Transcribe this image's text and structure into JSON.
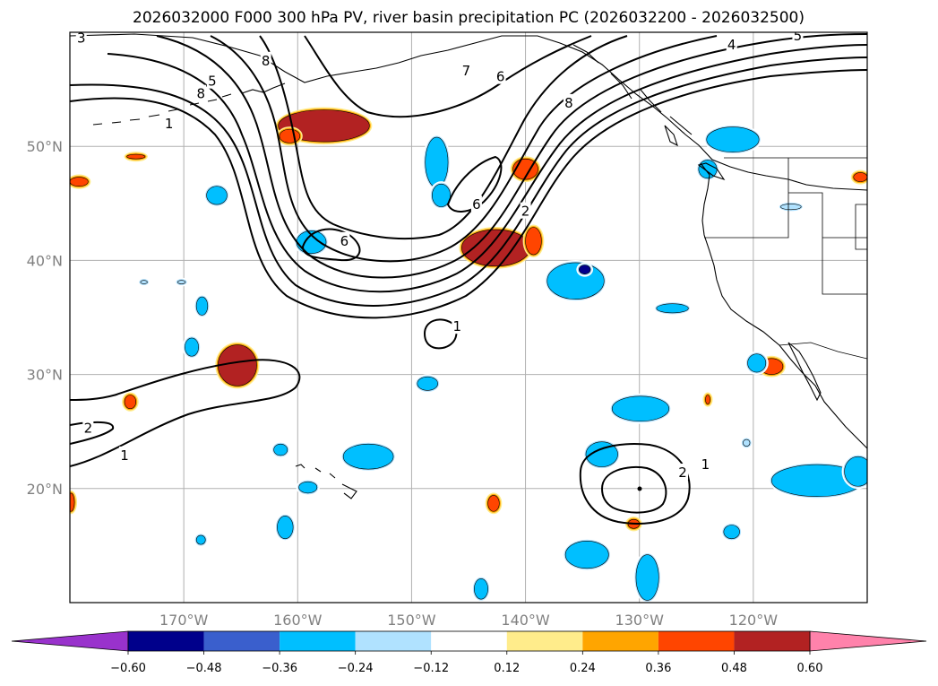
{
  "title": "2026032000 F000 300 hPa PV, river basin precipitation PC (2026032200 - 2026032500)",
  "map": {
    "lon_min": -180,
    "lon_max": -110,
    "lat_min": 10,
    "lat_max": 60,
    "lon_ticks": [
      {
        "lon": -170,
        "label": "170°W"
      },
      {
        "lon": -160,
        "label": "160°W"
      },
      {
        "lon": -150,
        "label": "150°W"
      },
      {
        "lon": -140,
        "label": "140°W"
      },
      {
        "lon": -130,
        "label": "130°W"
      },
      {
        "lon": -120,
        "label": "120°W"
      }
    ],
    "lat_ticks": [
      {
        "lat": 50,
        "label": "50°N"
      },
      {
        "lat": 40,
        "label": "40°N"
      },
      {
        "lat": 30,
        "label": "30°N"
      },
      {
        "lat": 20,
        "label": "20°N"
      }
    ],
    "grid": true
  },
  "colorbar": {
    "levels": [
      -0.6,
      -0.48,
      -0.36,
      -0.24,
      -0.12,
      0.12,
      0.24,
      0.36,
      0.48,
      0.6
    ],
    "tick_labels": [
      "−0.60",
      "−0.48",
      "−0.36",
      "−0.24",
      "−0.12",
      "0.12",
      "0.24",
      "0.36",
      "0.48",
      "0.60"
    ],
    "colors": [
      "#9932cc",
      "#00008b",
      "#3a5fcd",
      "#00bfff",
      "#b0e2ff",
      "#ffffff",
      "#ffec8b",
      "#ffa500",
      "#ff4500",
      "#b22222",
      "#ff82ab"
    ],
    "extend": "both"
  },
  "contour_labels": [
    {
      "text": "3",
      "lon": -179.0,
      "lat": 59.5
    },
    {
      "text": "8",
      "lon": -162.8,
      "lat": 57.5
    },
    {
      "text": "5",
      "lon": -167.5,
      "lat": 55.7
    },
    {
      "text": "8",
      "lon": -168.5,
      "lat": 54.6
    },
    {
      "text": "1",
      "lon": -171.3,
      "lat": 52.0
    },
    {
      "text": "7",
      "lon": -145.2,
      "lat": 56.6
    },
    {
      "text": "6",
      "lon": -142.2,
      "lat": 56.1
    },
    {
      "text": "8",
      "lon": -136.2,
      "lat": 53.8
    },
    {
      "text": "4",
      "lon": -121.9,
      "lat": 58.9
    },
    {
      "text": "5",
      "lon": -116.1,
      "lat": 59.7
    },
    {
      "text": "6",
      "lon": -144.3,
      "lat": 44.9
    },
    {
      "text": "2",
      "lon": -140.0,
      "lat": 44.3
    },
    {
      "text": "6",
      "lon": -155.9,
      "lat": 41.7
    },
    {
      "text": "1",
      "lon": -146.0,
      "lat": 34.2
    },
    {
      "text": "2",
      "lon": -178.4,
      "lat": 25.3
    },
    {
      "text": "1",
      "lon": -175.2,
      "lat": 22.9
    },
    {
      "text": "1",
      "lon": -124.2,
      "lat": 22.1
    },
    {
      "text": "2",
      "lon": -126.2,
      "lat": 21.4
    }
  ],
  "precip_cells": [
    {
      "lon": -157.7,
      "lat": 51.8,
      "rx": 4.0,
      "ry": 1.4,
      "value": 0.48
    },
    {
      "lon": -160.7,
      "lat": 50.9,
      "rx": 0.9,
      "ry": 0.6,
      "value": 0.36
    },
    {
      "lon": -142.6,
      "lat": 41.1,
      "rx": 3.0,
      "ry": 1.6,
      "value": 0.48
    },
    {
      "lon": -140.0,
      "lat": 48.0,
      "rx": 1.1,
      "ry": 0.9,
      "value": 0.36
    },
    {
      "lon": -139.3,
      "lat": 41.7,
      "rx": 0.7,
      "ry": 1.2,
      "value": 0.36
    },
    {
      "lon": -165.3,
      "lat": 30.8,
      "rx": 1.7,
      "ry": 1.8,
      "value": 0.48
    },
    {
      "lon": -174.7,
      "lat": 27.6,
      "rx": 0.5,
      "ry": 0.6,
      "value": 0.36
    },
    {
      "lon": -179.2,
      "lat": 46.9,
      "rx": 0.8,
      "ry": 0.4,
      "value": 0.36
    },
    {
      "lon": -174.2,
      "lat": 49.1,
      "rx": 0.8,
      "ry": 0.2,
      "value": 0.36
    },
    {
      "lon": -142.8,
      "lat": 18.7,
      "rx": 0.5,
      "ry": 0.7,
      "value": 0.36
    },
    {
      "lon": -130.5,
      "lat": 16.9,
      "rx": 0.5,
      "ry": 0.4,
      "value": 0.36
    },
    {
      "lon": -118.4,
      "lat": 30.7,
      "rx": 1.0,
      "ry": 0.7,
      "value": 0.36
    },
    {
      "lon": -124.0,
      "lat": 27.8,
      "rx": 0.2,
      "ry": 0.4,
      "value": 0.36
    },
    {
      "lon": -110.6,
      "lat": 47.3,
      "rx": 0.6,
      "ry": 0.4,
      "value": 0.36
    },
    {
      "lon": -179.9,
      "lat": 18.8,
      "rx": 0.3,
      "ry": 0.8,
      "value": 0.36
    },
    {
      "lon": -147.8,
      "lat": 48.6,
      "rx": 1.0,
      "ry": 2.2,
      "value": -0.36
    },
    {
      "lon": -147.4,
      "lat": 45.7,
      "rx": 0.8,
      "ry": 1.0,
      "value": -0.36
    },
    {
      "lon": -158.8,
      "lat": 41.6,
      "rx": 1.3,
      "ry": 1.0,
      "value": -0.36
    },
    {
      "lon": -135.6,
      "lat": 38.2,
      "rx": 2.5,
      "ry": 1.6,
      "value": -0.36
    },
    {
      "lon": -134.8,
      "lat": 39.2,
      "rx": 0.5,
      "ry": 0.4,
      "value": -0.6
    },
    {
      "lon": -121.8,
      "lat": 50.6,
      "rx": 2.3,
      "ry": 1.1,
      "value": -0.36
    },
    {
      "lon": -116.7,
      "lat": 44.7,
      "rx": 0.9,
      "ry": 0.25,
      "value": -0.24
    },
    {
      "lon": -167.1,
      "lat": 45.7,
      "rx": 0.9,
      "ry": 0.8,
      "value": -0.36
    },
    {
      "lon": -168.4,
      "lat": 36.0,
      "rx": 0.5,
      "ry": 0.8,
      "value": -0.36
    },
    {
      "lon": -169.3,
      "lat": 32.4,
      "rx": 0.6,
      "ry": 0.8,
      "value": -0.36
    },
    {
      "lon": -173.5,
      "lat": 38.1,
      "rx": 0.3,
      "ry": 0.15,
      "value": -0.24
    },
    {
      "lon": -170.2,
      "lat": 38.1,
      "rx": 0.35,
      "ry": 0.15,
      "value": -0.24
    },
    {
      "lon": -127.1,
      "lat": 35.8,
      "rx": 1.4,
      "ry": 0.4,
      "value": -0.36
    },
    {
      "lon": -119.7,
      "lat": 31.0,
      "rx": 0.8,
      "ry": 0.8,
      "value": -0.36
    },
    {
      "lon": -148.6,
      "lat": 29.2,
      "rx": 0.9,
      "ry": 0.6,
      "value": -0.36
    },
    {
      "lon": -129.9,
      "lat": 27.0,
      "rx": 2.5,
      "ry": 1.1,
      "value": -0.36
    },
    {
      "lon": -133.3,
      "lat": 23.0,
      "rx": 1.4,
      "ry": 1.1,
      "value": -0.36
    },
    {
      "lon": -153.8,
      "lat": 22.8,
      "rx": 2.2,
      "ry": 1.1,
      "value": -0.36
    },
    {
      "lon": -161.5,
      "lat": 23.4,
      "rx": 0.6,
      "ry": 0.5,
      "value": -0.36
    },
    {
      "lon": -159.1,
      "lat": 20.1,
      "rx": 0.8,
      "ry": 0.5,
      "value": -0.36
    },
    {
      "lon": -161.1,
      "lat": 16.6,
      "rx": 0.7,
      "ry": 1.0,
      "value": -0.36
    },
    {
      "lon": -168.5,
      "lat": 15.5,
      "rx": 0.4,
      "ry": 0.4,
      "value": -0.36
    },
    {
      "lon": -134.6,
      "lat": 14.2,
      "rx": 1.9,
      "ry": 1.2,
      "value": -0.36
    },
    {
      "lon": -129.3,
      "lat": 12.2,
      "rx": 1.0,
      "ry": 2.0,
      "value": -0.36
    },
    {
      "lon": -143.9,
      "lat": 11.2,
      "rx": 0.6,
      "ry": 0.9,
      "value": -0.36
    },
    {
      "lon": -121.9,
      "lat": 16.2,
      "rx": 0.7,
      "ry": 0.6,
      "value": -0.36
    },
    {
      "lon": -114.4,
      "lat": 20.7,
      "rx": 4.0,
      "ry": 1.4,
      "value": -0.36
    },
    {
      "lon": -110.8,
      "lat": 21.5,
      "rx": 1.2,
      "ry": 1.3,
      "value": -0.36
    },
    {
      "lon": -120.6,
      "lat": 24.0,
      "rx": 0.3,
      "ry": 0.3,
      "value": -0.24
    },
    {
      "lon": -124.0,
      "lat": 48.0,
      "rx": 0.8,
      "ry": 0.8,
      "value": -0.36
    }
  ]
}
